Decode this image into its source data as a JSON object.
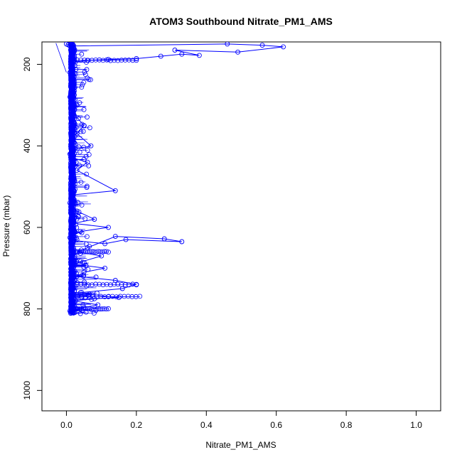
{
  "chart_data": {
    "type": "scatter",
    "title": "ATOM3 Southbound Nitrate_PM1_AMS",
    "xlabel": "Nitrate_PM1_AMS",
    "ylabel": "Pressure (mbar)",
    "xlim": [
      -0.07,
      1.07
    ],
    "ylim": [
      1050,
      145
    ],
    "y_reversed": true,
    "x_ticks": [
      0.0,
      0.2,
      0.4,
      0.6,
      0.8,
      1.0
    ],
    "x_tick_labels": [
      "0.0",
      "0.2",
      "0.4",
      "0.6",
      "0.8",
      "1.0"
    ],
    "y_ticks": [
      200,
      400,
      600,
      800,
      1000
    ],
    "y_tick_labels": [
      "200",
      "400",
      "600",
      "800",
      "1000"
    ],
    "grid": false,
    "legend": "none",
    "marker": "open-circle",
    "line": true,
    "color": "#0000ff",
    "series": [
      {
        "x": [
          0.0,
          0.005,
          0.01,
          0.46,
          0.56,
          0.62,
          0.49,
          0.31,
          0.38,
          0.33,
          0.27,
          0.2,
          0.12,
          0.06,
          0.02,
          0.01,
          0.02,
          0.01,
          0.03,
          0.02,
          0.05,
          0.03,
          0.07,
          0.02,
          0.01,
          0.02,
          0.06,
          0.03,
          0.14,
          0.02,
          0.01,
          0.03,
          0.08,
          0.02,
          0.12,
          0.04,
          0.02,
          0.01,
          0.03,
          0.02,
          0.11,
          0.17,
          0.33,
          0.28,
          0.14,
          0.06,
          0.03,
          0.1,
          0.02,
          0.11,
          0.05,
          0.03,
          0.14,
          0.2,
          0.16,
          0.04,
          0.12,
          0.15,
          0.08,
          0.02,
          0.09,
          0.03,
          0.01,
          0.02
        ],
        "y": [
          150,
          152,
          155,
          150,
          153,
          157,
          170,
          165,
          178,
          175,
          180,
          186,
          188,
          190,
          195,
          220,
          250,
          280,
          300,
          320,
          350,
          370,
          400,
          410,
          420,
          430,
          440,
          460,
          510,
          520,
          540,
          560,
          580,
          590,
          600,
          610,
          620,
          625,
          630,
          632,
          640,
          630,
          635,
          628,
          622,
          650,
          660,
          670,
          690,
          700,
          710,
          720,
          730,
          740,
          750,
          760,
          770,
          772,
          775,
          780,
          790,
          800,
          805,
          810
        ]
      }
    ]
  }
}
